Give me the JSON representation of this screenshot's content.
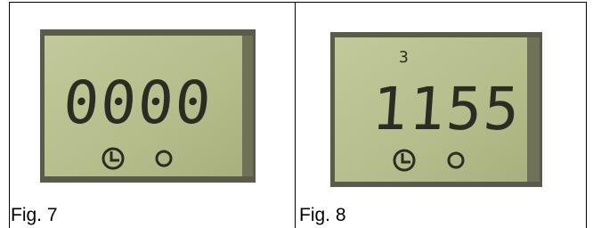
{
  "figures": [
    {
      "display": "0000",
      "caption": "Fig. 7"
    },
    {
      "indicator": "3",
      "display": "1155",
      "caption": "Fig. 8"
    }
  ]
}
